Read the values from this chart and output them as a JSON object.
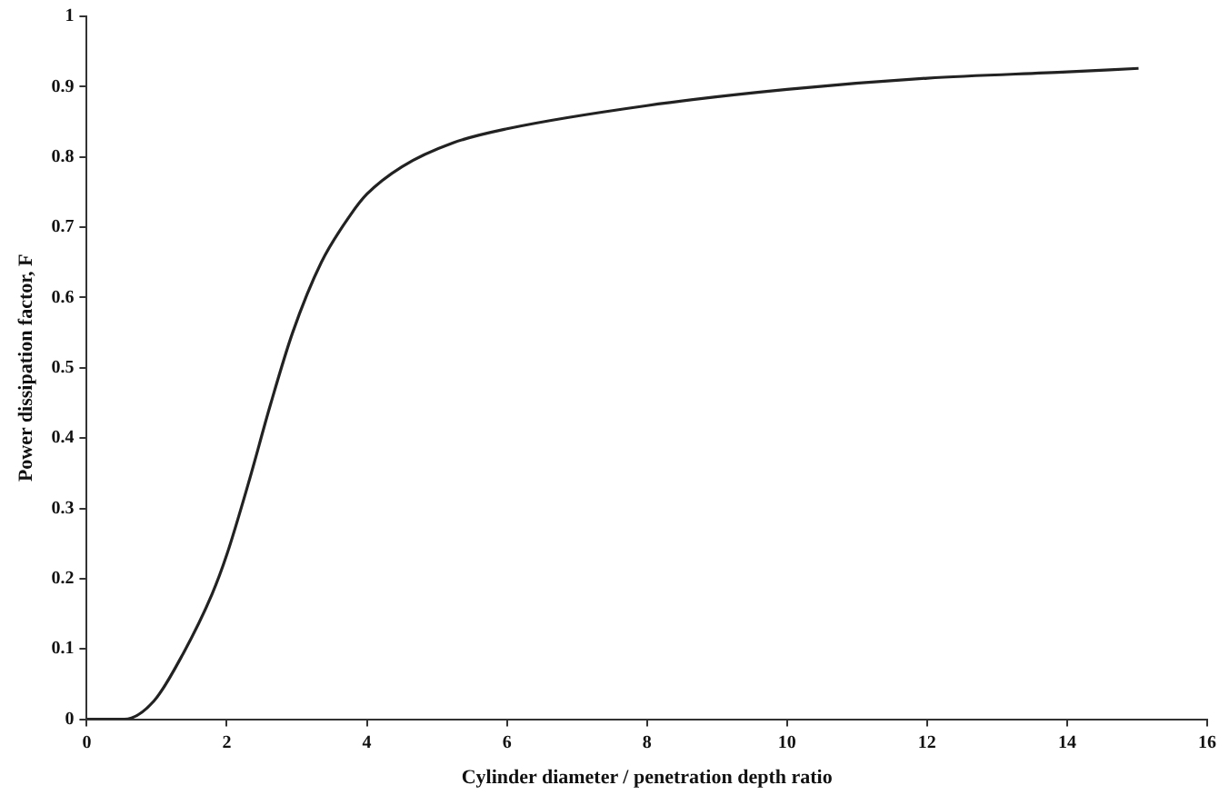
{
  "chart_data": {
    "type": "line",
    "xlabel": "Cylinder diameter / penetration depth ratio",
    "ylabel": "Power dissipation factor, F",
    "x": [
      0,
      0.54,
      0.96,
      1.375,
      1.79,
      2.0,
      2.31,
      2.625,
      2.94,
      3.35,
      3.77,
      4.0,
      4.5,
      5.23,
      6,
      8,
      10,
      12,
      14,
      15.02
    ],
    "series": [
      {
        "color": "#222222",
        "values": [
          0,
          0,
          0.026,
          0.093,
          0.178,
          0.234,
          0.336,
          0.448,
          0.55,
          0.65,
          0.718,
          0.747,
          0.786,
          0.82,
          0.84,
          0.873,
          0.896,
          0.912,
          0.921,
          0.926
        ]
      }
    ],
    "xlim": [
      0,
      16
    ],
    "xticks": [
      0,
      2,
      4,
      6,
      8,
      10,
      12,
      14,
      16
    ],
    "ylim": [
      0,
      1
    ],
    "yticks": [
      0,
      0.1,
      0.2,
      0.3,
      0.4,
      0.5,
      0.6,
      0.7,
      0.8,
      0.9,
      1
    ],
    "grid": false,
    "legend": false,
    "marker": "none",
    "line_style": "solid"
  }
}
